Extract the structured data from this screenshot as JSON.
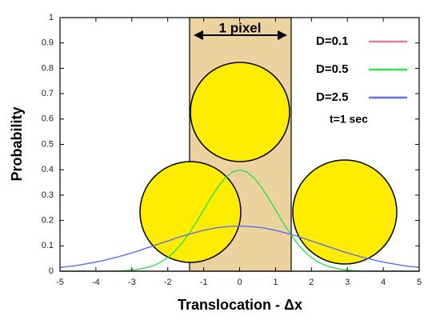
{
  "chart_data": {
    "type": "line",
    "xlabel": "Translocation  - Δx",
    "ylabel": "Probability",
    "pixel_label": "1 pixel",
    "annotation": "t=1 sec",
    "legend": "top-right",
    "x": [
      -5,
      -4.8,
      -4.6,
      -4.4,
      -4.2,
      -4,
      -3.8,
      -3.6,
      -3.4,
      -3.2,
      -3,
      -2.8,
      -2.6,
      -2.4,
      -2.2,
      -2,
      -1.8,
      -1.6,
      -1.4,
      -1.2,
      -1,
      -0.8,
      -0.6,
      -0.4,
      -0.2,
      0,
      0.2,
      0.4,
      0.6,
      0.8,
      1,
      1.2,
      1.4,
      1.6,
      1.8,
      2,
      2.2,
      2.4,
      2.6,
      2.8,
      3,
      3.2,
      3.4,
      3.6,
      3.8,
      4,
      4.2,
      4.4,
      4.6,
      4.8,
      5
    ],
    "series": [
      {
        "name": "D=0.1",
        "color": "#f27aa0",
        "values": [
          0,
          0,
          0,
          0,
          0,
          0,
          0,
          0,
          0,
          0,
          0,
          0,
          0,
          0,
          0,
          0,
          0,
          0,
          0,
          0,
          0,
          0,
          0,
          0,
          0,
          0,
          0,
          0,
          0,
          0,
          0,
          0,
          0,
          0,
          0,
          0,
          0,
          0,
          0,
          0,
          0,
          0,
          0,
          0,
          0,
          0,
          0,
          0,
          0,
          0,
          0
        ]
      },
      {
        "name": "D=0.5",
        "color": "#2ee24c",
        "values": [
          0,
          0,
          0,
          0,
          0,
          0,
          0,
          0.001,
          0.001,
          0.002,
          0.004,
          0.008,
          0.014,
          0.022,
          0.035,
          0.054,
          0.079,
          0.111,
          0.15,
          0.194,
          0.242,
          0.29,
          0.333,
          0.368,
          0.391,
          0.399,
          0.391,
          0.368,
          0.333,
          0.29,
          0.242,
          0.194,
          0.15,
          0.111,
          0.079,
          0.054,
          0.035,
          0.022,
          0.014,
          0.008,
          0.004,
          0.002,
          0.001,
          0.001,
          0,
          0,
          0,
          0,
          0,
          0,
          0
        ]
      },
      {
        "name": "D=2.5",
        "color": "#5c6ef2",
        "values": [
          0.015,
          0.018,
          0.021,
          0.026,
          0.031,
          0.036,
          0.042,
          0.049,
          0.056,
          0.064,
          0.072,
          0.081,
          0.091,
          0.1,
          0.11,
          0.119,
          0.129,
          0.138,
          0.146,
          0.154,
          0.161,
          0.167,
          0.172,
          0.175,
          0.177,
          0.178,
          0.177,
          0.175,
          0.172,
          0.167,
          0.161,
          0.154,
          0.146,
          0.138,
          0.129,
          0.119,
          0.11,
          0.1,
          0.091,
          0.081,
          0.072,
          0.064,
          0.056,
          0.049,
          0.042,
          0.036,
          0.031,
          0.026,
          0.021,
          0.018,
          0.015
        ]
      }
    ],
    "xlim": [
      -5,
      5
    ],
    "ylim": [
      0,
      1
    ],
    "xticks": [
      -5,
      -4,
      -3,
      -2,
      -1,
      0,
      1,
      2,
      3,
      4,
      5
    ],
    "yticks": [
      0,
      0.1,
      0.2,
      0.3,
      0.4,
      0.5,
      0.6,
      0.7,
      0.8,
      0.9,
      1
    ]
  }
}
